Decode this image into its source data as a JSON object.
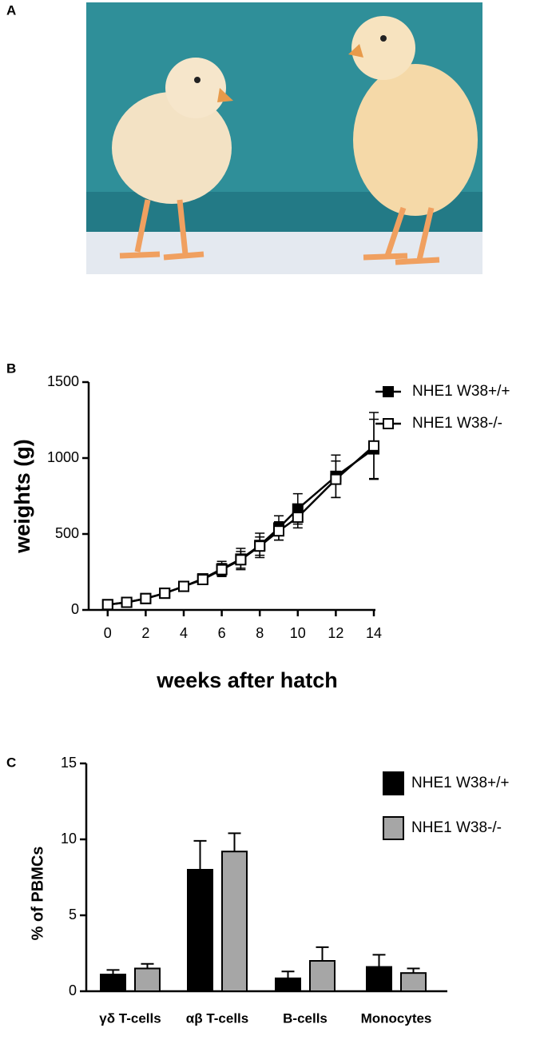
{
  "panel_labels": [
    "A",
    "B",
    "C"
  ],
  "chart_data": [
    {
      "type": "line",
      "x_label": "weeks after hatch",
      "y_label": "weights (g)",
      "x": [
        0,
        1,
        2,
        3,
        4,
        5,
        6,
        7,
        8,
        9,
        10,
        12,
        14
      ],
      "series": [
        {
          "name": "NHE1 W38+/+",
          "color": "#000000",
          "marker": "filled-square",
          "values": [
            35,
            50,
            75,
            110,
            155,
            205,
            270,
            335,
            425,
            540,
            665,
            880,
            1060
          ],
          "errors": [
            8,
            10,
            12,
            15,
            20,
            25,
            50,
            70,
            80,
            80,
            100,
            140,
            195
          ]
        },
        {
          "name": "NHE1 W38-/-",
          "color": "#000000",
          "marker": "open-square",
          "values": [
            35,
            50,
            75,
            110,
            155,
            200,
            265,
            330,
            420,
            520,
            610,
            860,
            1080
          ],
          "errors": [
            8,
            10,
            12,
            15,
            20,
            25,
            40,
            55,
            60,
            60,
            70,
            120,
            220
          ]
        }
      ],
      "xlim": [
        -1,
        14
      ],
      "xticks": [
        0,
        2,
        4,
        6,
        8,
        10,
        12,
        14
      ],
      "ylim": [
        0,
        1500
      ],
      "yticks": [
        0,
        500,
        1000,
        1500
      ]
    },
    {
      "type": "bar",
      "y_label": "% of PBMCs",
      "categories": [
        "γδ T-cells",
        "αβ T-cells",
        "B-cells",
        "Monocytes"
      ],
      "series": [
        {
          "name": "NHE1 W38+/+",
          "color": "#000000",
          "values": [
            1.1,
            8.0,
            0.85,
            1.6
          ],
          "errors": [
            0.3,
            1.9,
            0.45,
            0.8
          ]
        },
        {
          "name": "NHE1 W38-/-",
          "color": "#a6a6a6",
          "values": [
            1.5,
            9.2,
            2.0,
            1.2
          ],
          "errors": [
            0.3,
            1.2,
            0.9,
            0.3
          ]
        }
      ],
      "ylim": [
        0,
        15
      ],
      "yticks": [
        0,
        5,
        10,
        15
      ]
    }
  ]
}
